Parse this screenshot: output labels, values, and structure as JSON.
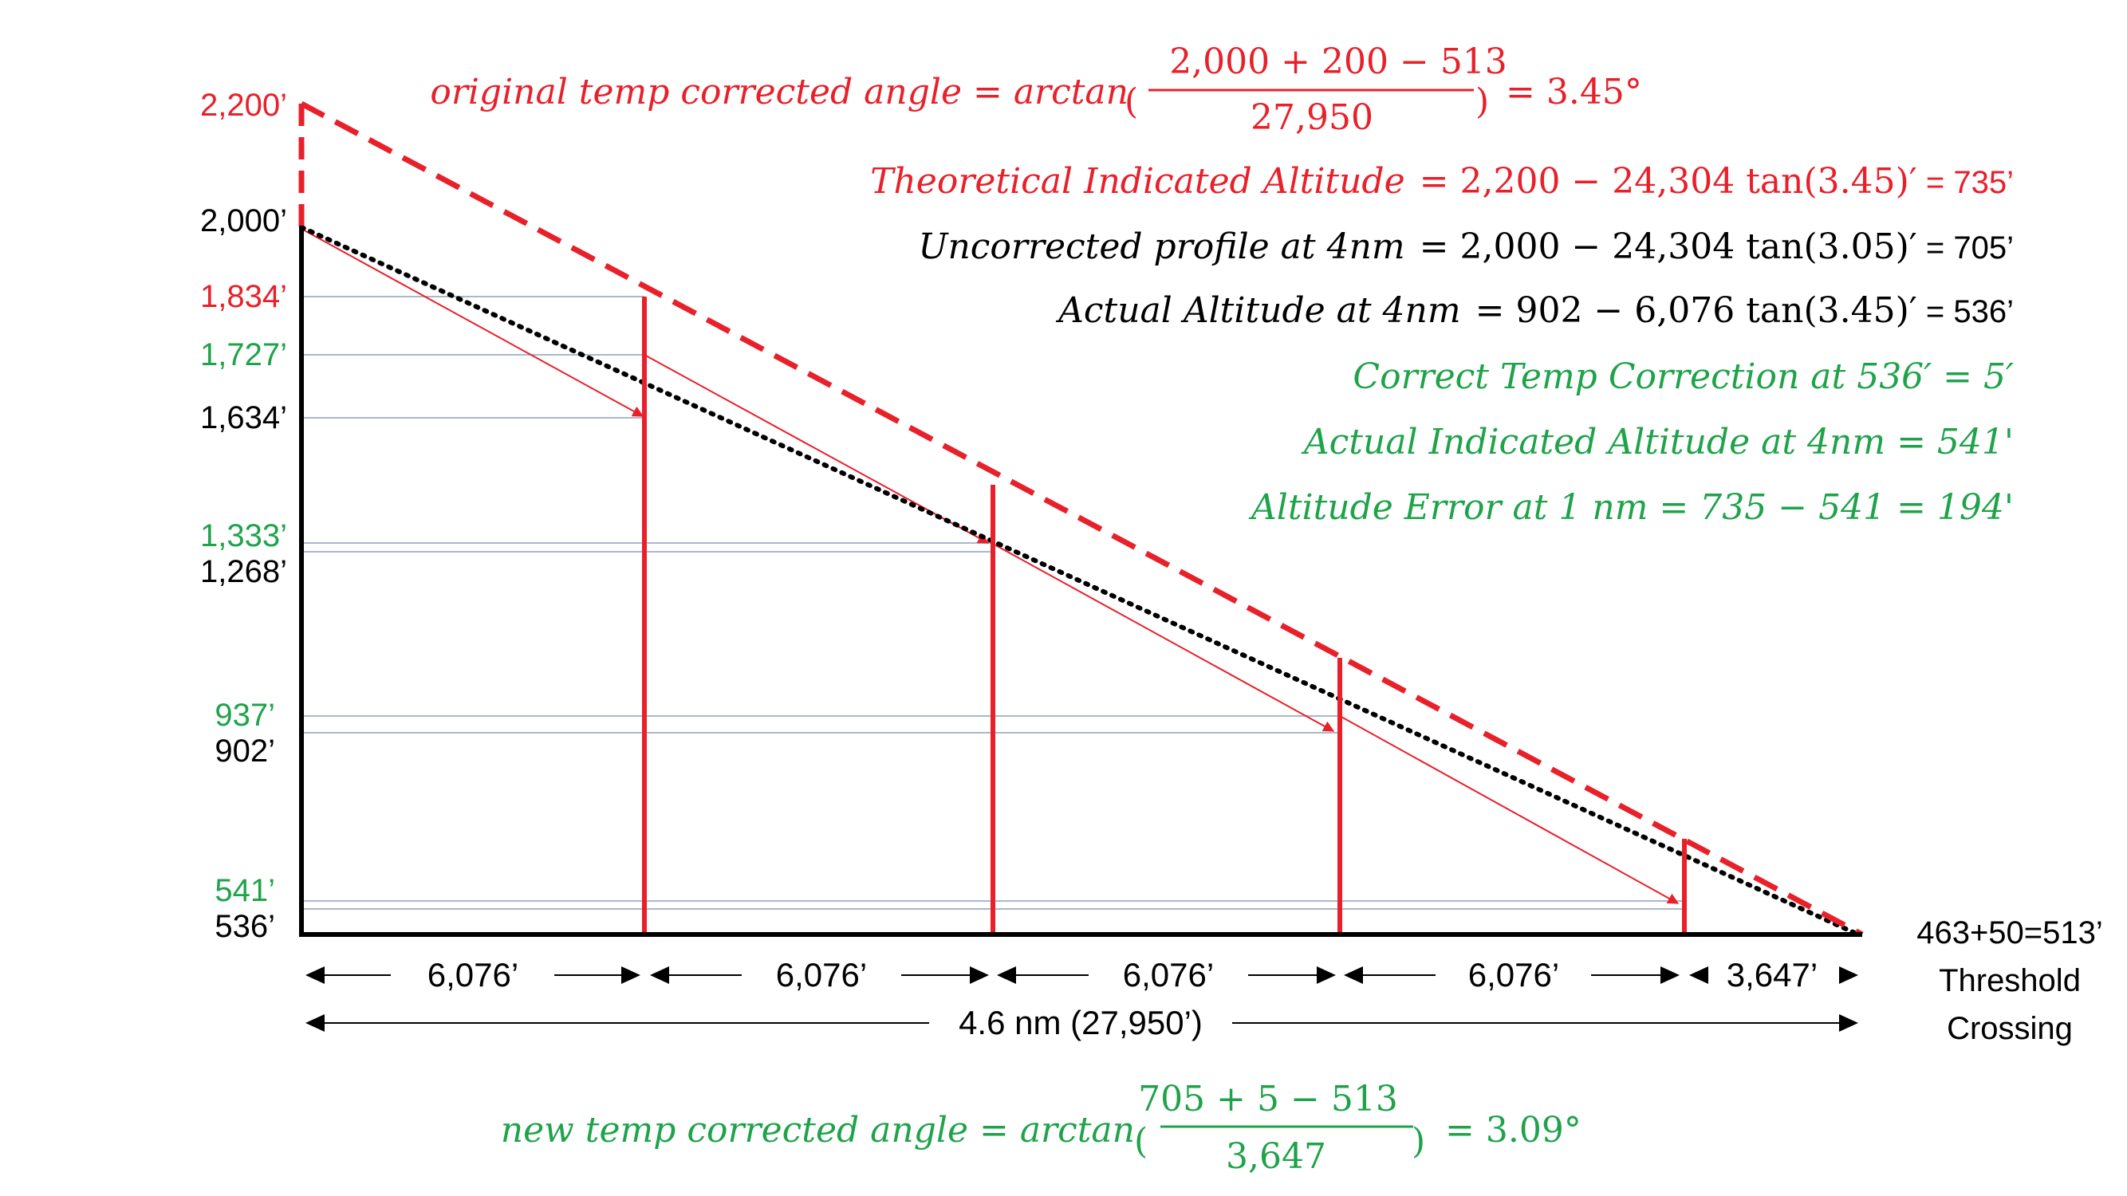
{
  "colors": {
    "red": "#e8202a",
    "green": "#1fa34a",
    "black": "#000000",
    "blue_gray": "#a9b8cc"
  },
  "y_axis_labels": {
    "l2200": "2,200’",
    "l2000": "2,000’",
    "l1834": "1,834’",
    "l1727": "1,727’",
    "l1634": "1,634’",
    "l1333": "1,333’",
    "l1268": "1,268’",
    "l937": "937’",
    "l902": "902’",
    "l541": "541’",
    "l536": "536’"
  },
  "threshold": {
    "value": "463+50=513’",
    "line1": "Threshold",
    "line2": "Crossing"
  },
  "segments": {
    "s1": "6,076’",
    "s2": "6,076’",
    "s3": "6,076’",
    "s4": "6,076’",
    "s5": "3,647’",
    "total": "4.6 nm (27,950’)"
  },
  "equations": {
    "original": {
      "lhs": "original temp corrected angle = arctan",
      "numerator": "2,000 + 200 − 513",
      "denominator": "27,950",
      "result": "= 3.45°"
    },
    "theoretical": {
      "lhs": "Theoretical  Indicated Altitude",
      "rhs": "= 2,200  − 24,304 tan(3.45)′",
      "result": " = 735’"
    },
    "uncorrected": {
      "lhs": "Uncorrected profile at 4nm",
      "rhs": "= 2,000  − 24,304 tan(3.05)′",
      "result": " = 705’"
    },
    "actual": {
      "lhs": "Actual Altitude at 4nm",
      "rhs": "= 902  − 6,076 tan(3.45)′",
      "result": " = 536’"
    },
    "correct_temp": "Correct  Temp Correction at 536′ = 5′",
    "actual_indicated": "Actual Indicated Altitude at 4nm = 541'",
    "altitude_error": "Altitude Error at 1 nm = 735  − 541 = 194'",
    "new": {
      "lhs": "new temp corrected angle  = arctan",
      "numerator": "705 + 5 − 513",
      "denominator": "3,647",
      "result": "= 3.09°"
    }
  }
}
